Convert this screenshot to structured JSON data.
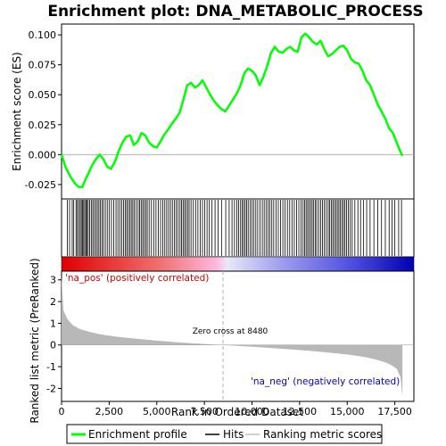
{
  "chart_data": {
    "type": "line",
    "title": "Enrichment plot: DNA_METABOLIC_PROCESS",
    "xlabel": "Rank in Ordered Dataset",
    "ylabel_top": "Enrichment score (ES)",
    "ylabel_bottom": "Ranked list metric (PreRanked)",
    "xlim": [
      0,
      18500
    ],
    "es_ylim": [
      -0.037,
      0.109
    ],
    "metric_ylim": [
      -2.6,
      3.4
    ],
    "x_ticks": [
      0,
      2500,
      5000,
      7500,
      10000,
      12500,
      15000,
      17500
    ],
    "x_tick_labels": [
      "0",
      "2,500",
      "5,000",
      "7,500",
      "10,000",
      "12,500",
      "15,000",
      "17,500"
    ],
    "es_ticks": [
      -0.025,
      0.0,
      0.025,
      0.05,
      0.075,
      0.1
    ],
    "es_tick_labels": [
      "-0.025",
      "0.000",
      "0.025",
      "0.050",
      "0.075",
      "0.100"
    ],
    "metric_ticks": [
      -2,
      -1,
      0,
      1,
      2,
      3
    ],
    "metric_tick_labels": [
      "-2",
      "-1",
      "0",
      "1",
      "2",
      "3"
    ],
    "grid": false,
    "series": [
      {
        "name": "Enrichment profile",
        "color": "#00ff00",
        "x": [
          0,
          200,
          450,
          700,
          900,
          1100,
          1250,
          1400,
          1600,
          1800,
          2000,
          2200,
          2400,
          2600,
          2800,
          3000,
          3200,
          3400,
          3600,
          3800,
          4000,
          4200,
          4400,
          4600,
          4800,
          5000,
          5200,
          5400,
          5600,
          5800,
          6000,
          6200,
          6400,
          6600,
          6800,
          7000,
          7200,
          7400,
          7600,
          7800,
          8000,
          8200,
          8400,
          8600,
          8800,
          9000,
          9200,
          9400,
          9600,
          9800,
          10000,
          10200,
          10400,
          10600,
          10800,
          11000,
          11200,
          11400,
          11600,
          11800,
          12000,
          12200,
          12400,
          12600,
          12800,
          13000,
          13200,
          13400,
          13600,
          13800,
          14000,
          14200,
          14400,
          14600,
          14800,
          15000,
          15200,
          15400,
          15600,
          15800,
          16000,
          16200,
          16400,
          16600,
          16800,
          17000,
          17200,
          17400,
          17600,
          17800,
          17900
        ],
        "y": [
          0.0,
          -0.01,
          -0.018,
          -0.024,
          -0.027,
          -0.027,
          -0.021,
          -0.016,
          -0.009,
          -0.004,
          0.0,
          -0.004,
          -0.01,
          -0.012,
          -0.006,
          0.003,
          0.01,
          0.015,
          0.016,
          0.008,
          0.011,
          0.018,
          0.016,
          0.01,
          0.007,
          0.006,
          0.011,
          0.017,
          0.021,
          0.026,
          0.03,
          0.035,
          0.046,
          0.058,
          0.06,
          0.056,
          0.058,
          0.062,
          0.056,
          0.05,
          0.045,
          0.041,
          0.038,
          0.036,
          0.041,
          0.046,
          0.051,
          0.058,
          0.068,
          0.072,
          0.07,
          0.066,
          0.058,
          0.065,
          0.074,
          0.085,
          0.09,
          0.086,
          0.085,
          0.088,
          0.09,
          0.087,
          0.086,
          0.098,
          0.101,
          0.098,
          0.094,
          0.092,
          0.095,
          0.088,
          0.082,
          0.084,
          0.087,
          0.09,
          0.091,
          0.087,
          0.08,
          0.077,
          0.076,
          0.07,
          0.062,
          0.058,
          0.05,
          0.042,
          0.036,
          0.03,
          0.022,
          0.018,
          0.01,
          0.002,
          -0.001
        ]
      }
    ],
    "hits_x": [
      300,
      420,
      560,
      640,
      760,
      830,
      900,
      980,
      1040,
      1100,
      1160,
      1220,
      1280,
      1340,
      1400,
      1480,
      1560,
      1640,
      1720,
      1800,
      1880,
      1960,
      2040,
      2120,
      2200,
      2300,
      2400,
      2500,
      2620,
      2740,
      2860,
      2960,
      3060,
      3160,
      3260,
      3340,
      3420,
      3500,
      3580,
      3660,
      3740,
      3820,
      3920,
      4020,
      4100,
      4180,
      4260,
      4340,
      4420,
      4500,
      4600,
      4720,
      4840,
      4960,
      5080,
      5200,
      5320,
      5420,
      5520,
      5620,
      5720,
      5820,
      5920,
      6020,
      6120,
      6220,
      6300,
      6380,
      6460,
      6540,
      6620,
      6700,
      6800,
      6920,
      7040,
      7160,
      7280,
      7400,
      7520,
      7640,
      7760,
      7900,
      8060,
      8220,
      8400,
      8620,
      8800,
      8950,
      9080,
      9200,
      9300,
      9400,
      9480,
      9560,
      9640,
      9720,
      9800,
      9900,
      10000,
      10100,
      10200,
      10300,
      10420,
      10540,
      10640,
      10740,
      10840,
      10940,
      11040,
      11140,
      11260,
      11380,
      11500,
      11620,
      11740,
      11860,
      11980,
      12100,
      12220,
      12340,
      12460,
      12580,
      12680,
      12760,
      12840,
      12920,
      13000,
      13080,
      13160,
      13240,
      13320,
      13400,
      13500,
      13600,
      13700,
      13800,
      13900,
      14000,
      14080,
      14160,
      14240,
      14320,
      14400,
      14480,
      14560,
      14640,
      14720,
      14800,
      14880,
      14960,
      15060,
      15160,
      15260,
      15400,
      15560,
      15700,
      15860,
      16020,
      16200,
      16400,
      16600,
      16800,
      17000,
      17200,
      17350,
      17500,
      17700,
      17850
    ],
    "metric_x": [
      0,
      100,
      300,
      600,
      1000,
      1500,
      2000,
      2500,
      3000,
      4000,
      5000,
      6000,
      7000,
      8000,
      8480,
      9000,
      10000,
      11000,
      12000,
      13000,
      14000,
      15000,
      15500,
      16000,
      16500,
      17000,
      17300,
      17600,
      17800,
      17900
    ],
    "metric_y": [
      3.2,
      1.6,
      1.2,
      0.9,
      0.72,
      0.6,
      0.5,
      0.43,
      0.37,
      0.28,
      0.2,
      0.13,
      0.07,
      0.02,
      0.0,
      -0.03,
      -0.08,
      -0.14,
      -0.2,
      -0.27,
      -0.35,
      -0.44,
      -0.5,
      -0.57,
      -0.67,
      -0.8,
      -0.92,
      -1.1,
      -1.5,
      -2.4
    ],
    "zero_cross_x": 8480,
    "zero_cross_label": "Zero cross at 8480",
    "label_pos": "'na_pos' (positively correlated)",
    "label_neg": "'na_neg' (negatively correlated)",
    "legend": {
      "position": "bottom",
      "items": [
        {
          "label": "Enrichment profile",
          "color": "#00ff00"
        },
        {
          "label": "Hits",
          "color": "#000000"
        },
        {
          "label": "Ranking metric scores",
          "color": "#c0c0c0"
        }
      ]
    },
    "colors": {
      "pos_label": "#d40000",
      "neg_label": "#0000cc",
      "metric_fill": "#b8b8b8",
      "zero_line": "#b0b0b0"
    }
  }
}
